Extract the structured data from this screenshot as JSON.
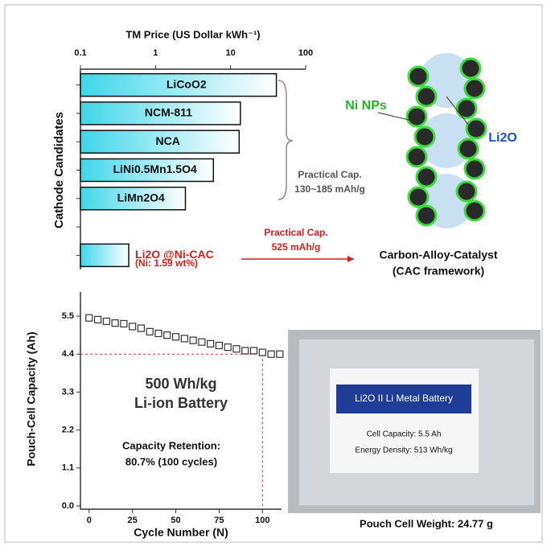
{
  "chart_data": [
    {
      "type": "hbar",
      "title": "TM Price (US Dollar kWh⁻¹)",
      "y_label": "Cathode Candidates",
      "categories": [
        "LiCoO2",
        "NCM-811",
        "NCA",
        "LiNi0.5Mn1.5O4",
        "LiMn2O4",
        null,
        "Li2O @Ni-CAC"
      ],
      "values": [
        40.7,
        13.5,
        13,
        5.9,
        2.5,
        null,
        0.44
      ],
      "xscale": "log",
      "xlim": [
        0.1,
        100
      ],
      "xticks": [
        0.1,
        1,
        10,
        100
      ],
      "color": "#3fd6e8",
      "highlight_color": "#d42020"
    },
    {
      "type": "scatter",
      "x_label": "Cycle Number (N)",
      "y_label": "Pouch-Cell Capacity (Ah)",
      "x": [
        0,
        5,
        10,
        15,
        20,
        25,
        30,
        35,
        40,
        45,
        50,
        55,
        60,
        65,
        70,
        75,
        80,
        85,
        90,
        95,
        100,
        105,
        110
      ],
      "values": [
        5.45,
        5.4,
        5.35,
        5.3,
        5.28,
        5.2,
        5.15,
        5.05,
        5.0,
        4.95,
        4.9,
        4.85,
        4.8,
        4.75,
        4.7,
        4.65,
        4.6,
        4.55,
        4.5,
        4.5,
        4.45,
        4.4,
        4.4
      ],
      "xlim": [
        -5,
        111
      ],
      "xticks": [
        0,
        25,
        50,
        75,
        100
      ],
      "ylim": [
        0,
        6.2
      ],
      "yticks": [
        {
          "value": 0,
          "label": "0.0"
        },
        1.1,
        2.2,
        3.3,
        4.4,
        5.5
      ],
      "reference_lines": {
        "x": 100,
        "y": 4.4
      },
      "color": "#333333",
      "reference_color": "#e03030"
    }
  ],
  "annotations": {
    "practical_cap_1": [
      "Practical Cap.",
      "130~185 mAh/g"
    ],
    "practical_cap_2": [
      "Practical Cap.",
      "525 mAh/g"
    ],
    "ni_content": "(Ni: 1.59 wt%)",
    "battery": [
      "500 Wh/kg",
      "Li-ion Battery"
    ],
    "retention": [
      "Capacity Retention:",
      "80.7% (100 cycles)"
    ]
  },
  "diagram": {
    "ni_label": "Ni NPs",
    "li2o_label": "Li2O",
    "caption": [
      "Carbon-Alloy-Catalyst",
      "(CAC framework)"
    ]
  },
  "photo": {
    "label": "Li2O II Li Metal Battery",
    "spec_1": "Cell Capacity: 5.5 Ah",
    "spec_2": "Energy Density: 513 Wh/kg",
    "caption": "Pouch Cell Weight: 24.77 g"
  }
}
